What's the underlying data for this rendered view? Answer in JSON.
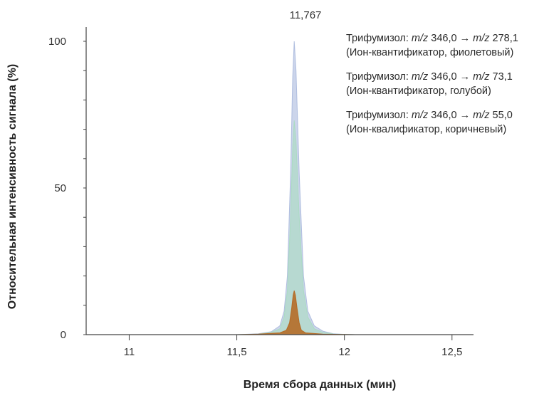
{
  "chart_data": {
    "type": "line",
    "xlabel": "Время сбора данных (мин)",
    "ylabel": "Относительная интенсивность сигнала (%)",
    "xlim": [
      10.8,
      12.6
    ],
    "ylim": [
      0,
      100
    ],
    "x_ticks": [
      {
        "value": 11,
        "label": "11"
      },
      {
        "value": 11.5,
        "label": "11,5"
      },
      {
        "value": 12,
        "label": "12"
      },
      {
        "value": 12.5,
        "label": "12,5"
      }
    ],
    "y_ticks": [
      {
        "value": 0,
        "label": "0"
      },
      {
        "value": 50,
        "label": "50"
      },
      {
        "value": 100,
        "label": "100"
      }
    ],
    "apex": {
      "x": 11.767,
      "label": "11,767"
    },
    "series": [
      {
        "compound": "Трифумизол:",
        "mz_prefix": "m/z",
        "precursor": "346,0",
        "arrow": "→",
        "product": "278,1",
        "note": "(Ион-квантификатор, фиолетовый)",
        "color": "#aab9dd",
        "x": [
          11.5,
          11.6,
          11.66,
          11.7,
          11.72,
          11.735,
          11.75,
          11.76,
          11.767,
          11.775,
          11.79,
          11.81,
          11.83,
          11.86,
          11.9,
          11.95,
          12.0,
          12.05
        ],
        "values": [
          0,
          0.3,
          1,
          3,
          8,
          20,
          55,
          88,
          100,
          90,
          55,
          20,
          8,
          3,
          1.2,
          0.3,
          0.1,
          0
        ]
      },
      {
        "compound": "Трифумизол:",
        "mz_prefix": "m/z",
        "precursor": "346,0",
        "arrow": "→",
        "product": "73,1",
        "note": "(Ион-квантификатор, голубой)",
        "color": "#a9dcc0",
        "x": [
          11.5,
          11.6,
          11.66,
          11.7,
          11.72,
          11.735,
          11.75,
          11.76,
          11.767,
          11.775,
          11.79,
          11.81,
          11.83,
          11.86,
          11.9,
          11.95,
          12.0,
          12.05
        ],
        "values": [
          0,
          0.2,
          0.8,
          2,
          6,
          15,
          40,
          64,
          73,
          66,
          40,
          15,
          6,
          2,
          0.8,
          0.2,
          0.1,
          0
        ]
      },
      {
        "compound": "Трифумизол:",
        "mz_prefix": "m/z",
        "precursor": "346,0",
        "arrow": "→",
        "product": "55,0",
        "note": "(Ион-квалификатор, коричневый)",
        "color": "#b5651d",
        "x": [
          11.5,
          11.6,
          11.7,
          11.73,
          11.745,
          11.755,
          11.762,
          11.767,
          11.772,
          11.78,
          11.79,
          11.8,
          11.82,
          11.9,
          12.05
        ],
        "values": [
          0,
          0.2,
          0.6,
          1.5,
          4,
          9,
          13.5,
          15,
          13.5,
          9,
          4,
          1.5,
          0.6,
          0.2,
          0
        ]
      }
    ]
  }
}
